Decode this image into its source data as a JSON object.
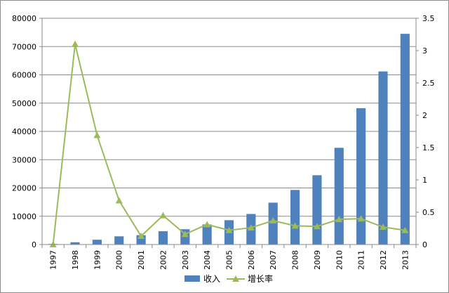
{
  "chart_data": {
    "type": "bar",
    "categories": [
      "1997",
      "1998",
      "1999",
      "2000",
      "2001",
      "2002",
      "2003",
      "2004",
      "2005",
      "2006",
      "2007",
      "2008",
      "2009",
      "2010",
      "2011",
      "2012",
      "2013"
    ],
    "series": [
      {
        "name": "收入",
        "kind": "bar",
        "axis": "left",
        "color": "#4F81BD",
        "values": [
          200,
          800,
          1700,
          2900,
          3300,
          4700,
          5400,
          7100,
          8600,
          10800,
          14800,
          19300,
          24500,
          34200,
          48200,
          61200,
          74500
        ]
      },
      {
        "name": "增长率",
        "kind": "line",
        "axis": "right",
        "color": "#9BBB59",
        "marker": "triangle",
        "values": [
          0.0,
          3.1,
          1.69,
          0.68,
          0.13,
          0.45,
          0.16,
          0.31,
          0.22,
          0.26,
          0.37,
          0.29,
          0.28,
          0.39,
          0.4,
          0.27,
          0.22
        ]
      }
    ],
    "y_left": {
      "ylim": [
        0,
        80000
      ],
      "ticks": [
        "0",
        "10000",
        "20000",
        "30000",
        "40000",
        "50000",
        "60000",
        "70000",
        "80000"
      ]
    },
    "y_right": {
      "ylim": [
        0,
        3.5
      ],
      "ticks": [
        "0",
        "0.5",
        "1",
        "1.5",
        "2",
        "2.5",
        "3",
        "3.5"
      ]
    },
    "grid": "horizontal",
    "legend": "bottom-center"
  }
}
